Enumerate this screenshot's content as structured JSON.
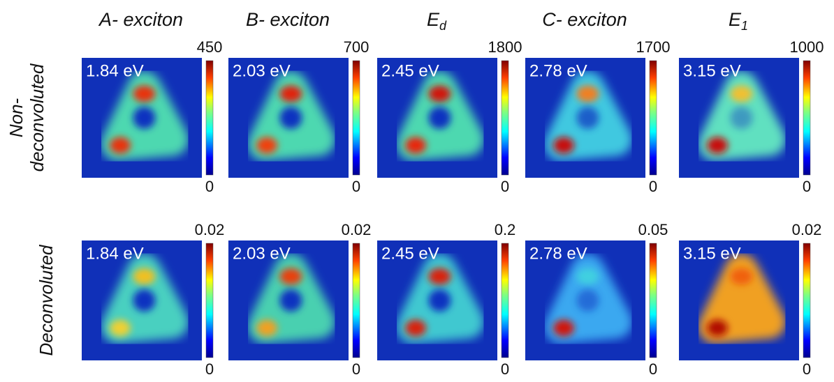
{
  "column_headers": [
    {
      "text": "A- exciton"
    },
    {
      "text": "B- exciton"
    },
    {
      "text": "E",
      "subscript": "d"
    },
    {
      "text": "C- exciton"
    },
    {
      "text": "E",
      "subscript": "1"
    }
  ],
  "rows": [
    {
      "label": [
        "Non-",
        "deconvoluted"
      ],
      "panels": [
        {
          "energy": "1.84 eV",
          "max": "450",
          "min": "0"
        },
        {
          "energy": "2.03 eV",
          "max": "700",
          "min": "0"
        },
        {
          "energy": "2.45 eV",
          "max": "1800",
          "min": "0"
        },
        {
          "energy": "2.78 eV",
          "max": "1700",
          "min": "0"
        },
        {
          "energy": "3.15 eV",
          "max": "1000",
          "min": "0"
        }
      ]
    },
    {
      "label": [
        "Deconvoluted"
      ],
      "panels": [
        {
          "energy": "1.84 eV",
          "max": "0.02",
          "min": "0"
        },
        {
          "energy": "2.03 eV",
          "max": "0.02",
          "min": "0"
        },
        {
          "energy": "2.45 eV",
          "max": "0.2",
          "min": "0"
        },
        {
          "energy": "2.78 eV",
          "max": "0.05",
          "min": "0"
        },
        {
          "energy": "3.15 eV",
          "max": "0.02",
          "min": "0"
        }
      ]
    }
  ]
}
